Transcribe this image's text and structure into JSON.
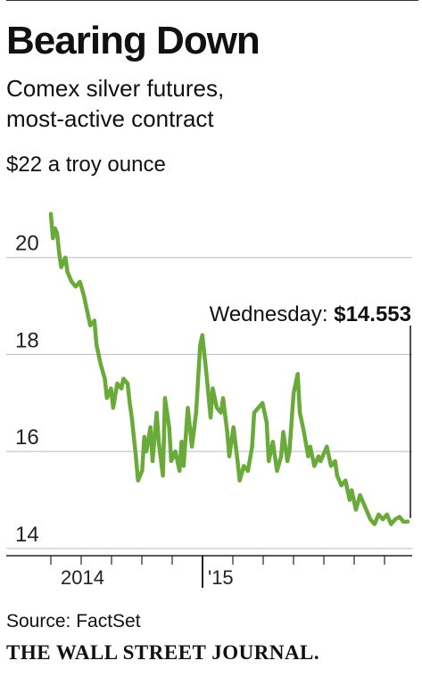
{
  "header": {
    "title": "Bearing Down",
    "subtitle_line1": "Comex silver futures,",
    "subtitle_line2": "most-active contract",
    "unit_label": "$22 a troy ounce"
  },
  "footer": {
    "source": "Source: FactSet",
    "publisher": "THE WALL STREET JOURNAL."
  },
  "chart_data": {
    "type": "line",
    "ylim": [
      13.85,
      22
    ],
    "y_ticks": [
      14,
      16,
      18,
      20
    ],
    "x_tick_labels": [
      {
        "label": "2014",
        "x": 0.1
      },
      {
        "label": "'15",
        "x": 1.0
      }
    ],
    "annotation": {
      "label": "Wednesday: ",
      "value_text": "$14.553",
      "x": 1.72,
      "y": 14.553
    },
    "grid": true,
    "colors": {
      "line": "#6aaa3a",
      "grid": "#bbbbbb",
      "axis": "#222222"
    },
    "series": [
      {
        "x": [
          0.0,
          0.01,
          0.02,
          0.03,
          0.04,
          0.05,
          0.07,
          0.08,
          0.1,
          0.12,
          0.14,
          0.16,
          0.17,
          0.19,
          0.21,
          0.22,
          0.24,
          0.26,
          0.27,
          0.29,
          0.3,
          0.32,
          0.34,
          0.35,
          0.37,
          0.38,
          0.39,
          0.41,
          0.42,
          0.44,
          0.45,
          0.46,
          0.48,
          0.49,
          0.51,
          0.52,
          0.54,
          0.55,
          0.57,
          0.58,
          0.6,
          0.62,
          0.63,
          0.64,
          0.66,
          0.68,
          0.7,
          0.72,
          0.73,
          0.75,
          0.77,
          0.78,
          0.8,
          0.82,
          0.83,
          0.85,
          0.86,
          0.88,
          0.9,
          0.91,
          0.93,
          0.95,
          0.97,
          0.98,
          1.0,
          1.02,
          1.04,
          1.05,
          1.07,
          1.09,
          1.11,
          1.12,
          1.14,
          1.15,
          1.17,
          1.19,
          1.2,
          1.22,
          1.24,
          1.25,
          1.27,
          1.29,
          1.3,
          1.32,
          1.33,
          1.35,
          1.37,
          1.38,
          1.4,
          1.42,
          1.44,
          1.45,
          1.47,
          1.49,
          1.51,
          1.52,
          1.54,
          1.56,
          1.58,
          1.6,
          1.62,
          1.64,
          1.66,
          1.68,
          1.7,
          1.72
        ],
        "y": [
          20.9,
          20.4,
          20.6,
          20.5,
          20.1,
          19.8,
          20.0,
          19.7,
          19.5,
          19.4,
          19.5,
          19.2,
          19.0,
          18.6,
          18.7,
          18.2,
          17.8,
          17.5,
          17.1,
          17.3,
          16.9,
          17.4,
          17.3,
          17.5,
          17.4,
          17.0,
          16.7,
          15.9,
          15.4,
          15.6,
          16.3,
          16.0,
          16.5,
          15.8,
          16.8,
          16.2,
          15.5,
          17.1,
          16.5,
          15.8,
          16.0,
          15.6,
          16.2,
          15.7,
          16.9,
          16.1,
          16.8,
          18.2,
          18.4,
          17.6,
          16.7,
          17.3,
          16.9,
          16.8,
          17.1,
          16.4,
          15.9,
          16.5,
          15.8,
          15.4,
          15.7,
          15.6,
          16.1,
          16.8,
          16.9,
          17.0,
          16.6,
          15.8,
          16.2,
          15.6,
          15.9,
          16.4,
          15.8,
          16.0,
          17.2,
          17.6,
          16.8,
          16.4,
          15.9,
          16.1,
          15.7,
          15.9,
          15.8,
          16.0,
          16.1,
          15.7,
          15.8,
          15.5,
          15.3,
          15.4,
          15.0,
          15.2,
          14.8,
          15.1,
          14.9,
          14.8,
          14.6,
          14.5,
          14.7,
          14.6,
          14.7,
          14.5,
          14.6,
          14.65,
          14.55,
          14.553
        ]
      }
    ]
  }
}
